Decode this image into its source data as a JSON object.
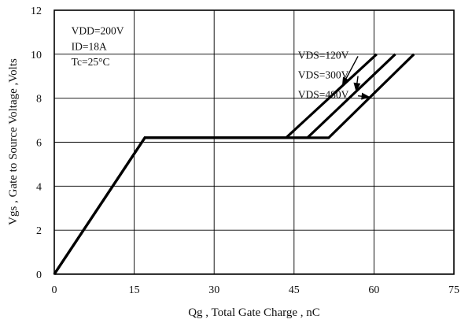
{
  "chart_data": {
    "type": "line",
    "xlabel": "Qg , Total Gate Charge , nC",
    "ylabel": "Vgs , Gate to Source Voltage ,Volts",
    "xlim": [
      0,
      75
    ],
    "ylim": [
      0,
      12
    ],
    "xticks": [
      "0",
      "15",
      "30",
      "45",
      "60",
      "75"
    ],
    "yticks": [
      "0",
      "2",
      "4",
      "6",
      "8",
      "10",
      "12"
    ],
    "grid": true,
    "conditions": [
      "VDD=200V",
      "ID=18A",
      "Tc=25°C"
    ],
    "series": [
      {
        "name": "VDS=120V",
        "x": [
          0,
          17,
          43.5,
          60.5
        ],
        "y": [
          0,
          6.2,
          6.2,
          10
        ]
      },
      {
        "name": "VDS=300V",
        "x": [
          0,
          17,
          47.5,
          64.0
        ],
        "y": [
          0,
          6.2,
          6.2,
          10
        ]
      },
      {
        "name": "VDS=480V",
        "x": [
          0,
          17,
          51.5,
          67.5
        ],
        "y": [
          0,
          6.2,
          6.2,
          10
        ]
      }
    ],
    "legend_placement": "top-center, with arrows pointing to curves"
  }
}
